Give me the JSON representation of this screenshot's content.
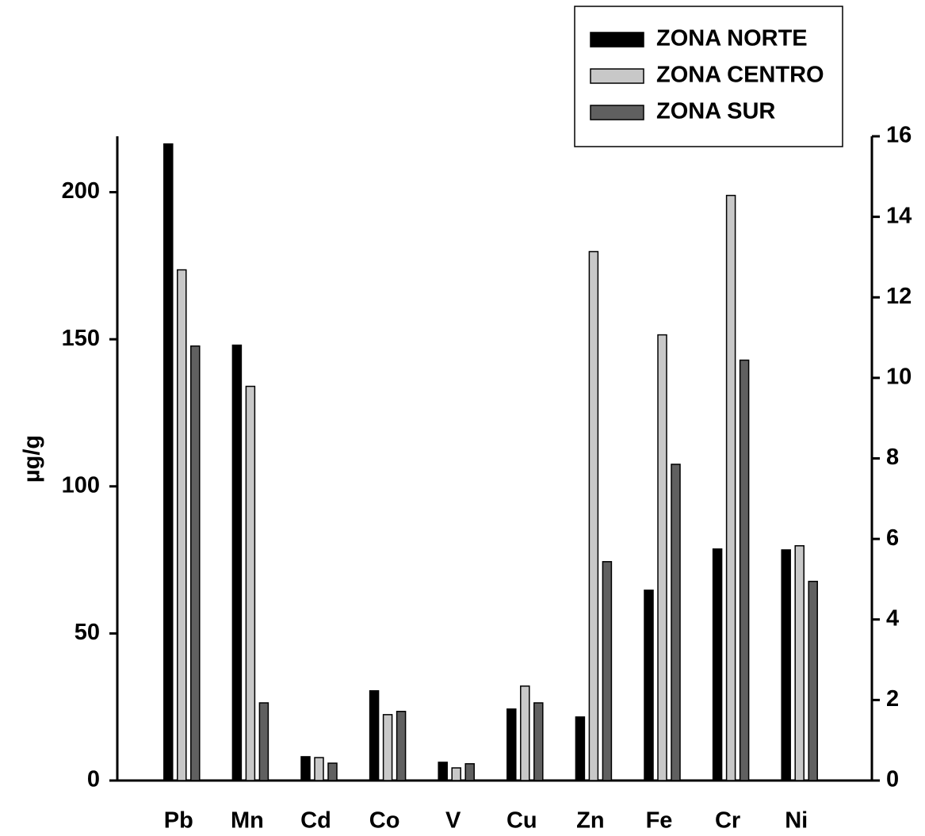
{
  "chart_data": {
    "type": "bar",
    "y_label": "µg/g",
    "categories": [
      "Pb",
      "Mn",
      "Cd",
      "Co",
      "V",
      "Cu",
      "Zn",
      "Fe",
      "Cr",
      "Ni"
    ],
    "series": [
      {
        "name": "ZONA NORTE",
        "color": "#000000",
        "values": [
          216.4,
          148,
          8.1,
          30.5,
          6.2,
          24.3,
          21.6,
          64.7,
          78.7,
          78.4
        ]
      },
      {
        "name": "ZONA CENTRO",
        "color": "#c8c8c8",
        "values": [
          173.6,
          134,
          7.8,
          22.4,
          4.3,
          32.1,
          179.8,
          151.5,
          198.9,
          79.8
        ]
      },
      {
        "name": "ZONA SUR",
        "color": "#606060",
        "values": [
          147.7,
          26.4,
          5.9,
          23.5,
          5.7,
          26.4,
          74.4,
          107.5,
          142.9,
          67.7
        ]
      }
    ],
    "ylim": [
      0,
      219
    ],
    "yticks": [
      0,
      50,
      100,
      150,
      200
    ],
    "y2lim": [
      0,
      16
    ],
    "y2ticks": [
      0,
      2,
      4,
      6,
      8,
      10,
      12,
      14,
      16
    ],
    "legend": "top-right"
  }
}
